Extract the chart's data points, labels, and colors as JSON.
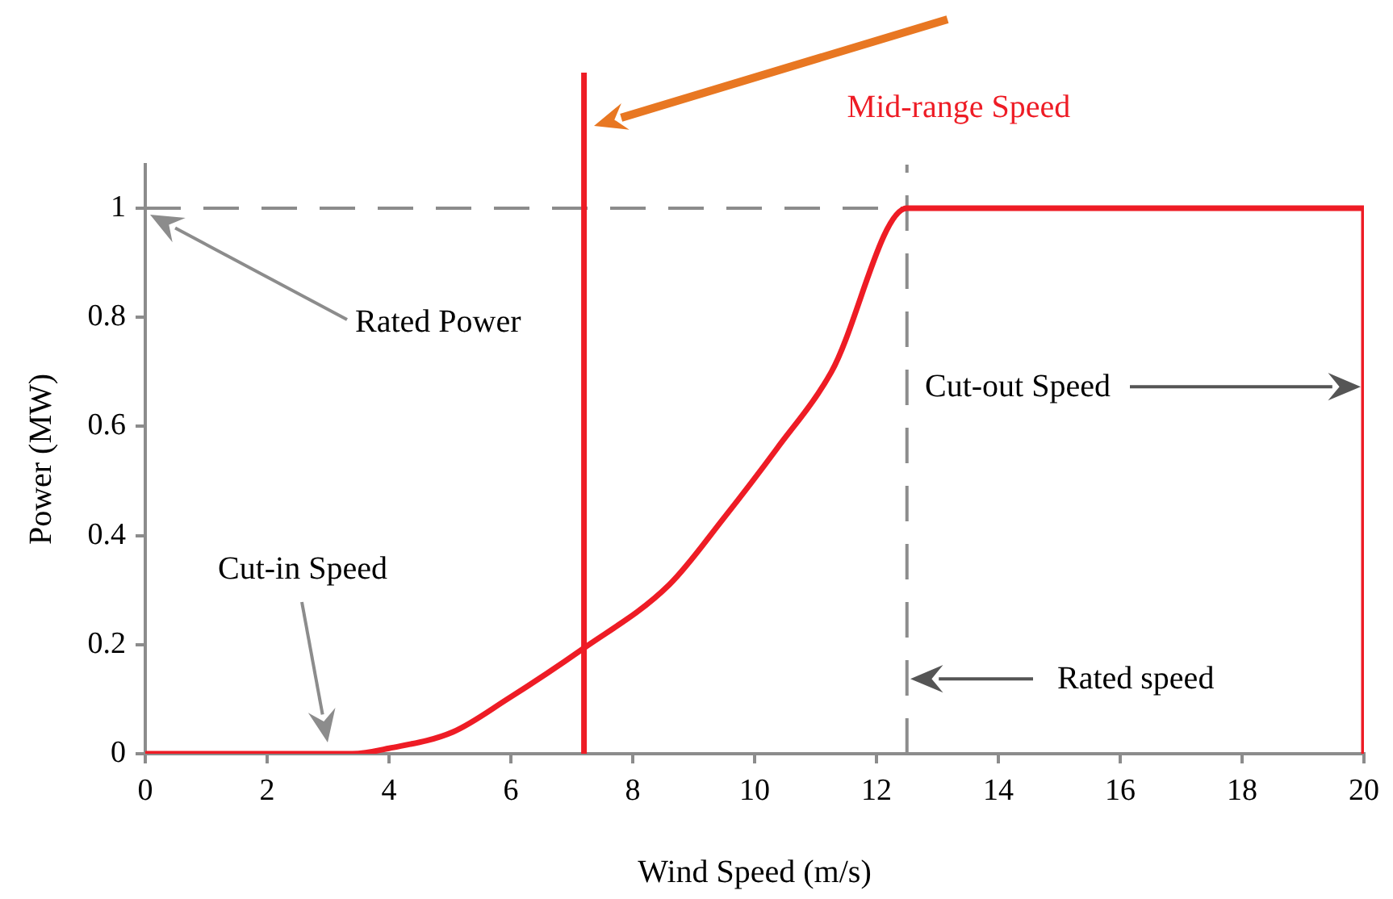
{
  "chart_data": {
    "type": "line",
    "xlabel": "Wind Speed (m/s)",
    "ylabel": "Power (MW)",
    "xlim": [
      0,
      20
    ],
    "xticks": [
      0,
      2,
      4,
      6,
      8,
      10,
      12,
      14,
      16,
      18,
      20
    ],
    "ylim": [
      0,
      1.08
    ],
    "yticks": [
      0,
      0.2,
      0.4,
      0.6,
      0.8,
      1
    ],
    "grid": false,
    "legend": false,
    "marker": "none",
    "line_style": "solid",
    "series": [
      {
        "color": "#ee1c25",
        "x": [
          0,
          3.4,
          4,
          5.05,
          5.94,
          7.15,
          8.6,
          9.48,
          10.37,
          11.26,
          12.5,
          20,
          20
        ],
        "values": [
          0,
          0,
          0.01,
          0.04,
          0.1,
          0.19,
          0.31,
          0.43,
          0.56,
          0.7,
          1,
          1,
          0
        ]
      }
    ],
    "ref_lines": [
      {
        "axis": "y",
        "value": 1,
        "color": "#8c8c8c",
        "line_style": "dashed"
      },
      {
        "axis": "x",
        "value": 12.5,
        "color": "#8c8c8c",
        "line_style": "dashed"
      },
      {
        "axis": "x",
        "value": 7.2,
        "color": "#ee1c25",
        "line_style": "solid",
        "label": "Mid-range Speed"
      }
    ],
    "annotations": [
      "Rated Power",
      "Cut-in Speed",
      "Cut-out Speed",
      "Rated speed"
    ]
  }
}
